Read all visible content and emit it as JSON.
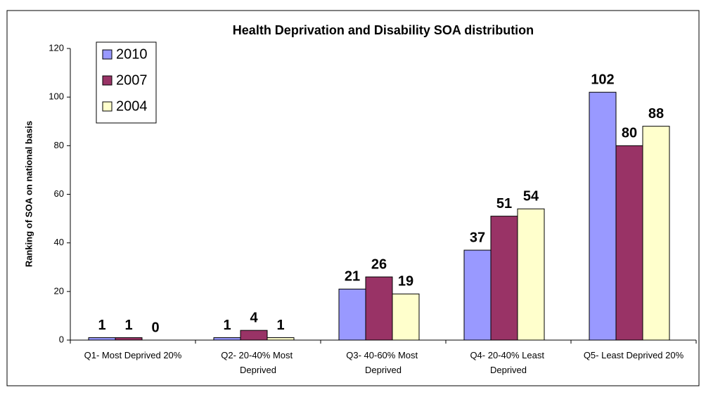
{
  "chart_data": {
    "type": "bar",
    "title": "Health Deprivation and Disability SOA distribution",
    "y_label": "Ranking of SOA on national basis",
    "categories": [
      "Q1- Most Deprived 20%",
      "Q2- 20-40% Most Deprived",
      "Q3- 40-60% Most Deprived",
      "Q4- 20-40% Least Deprived",
      "Q5- Least Deprived 20%"
    ],
    "series": [
      {
        "name": "2010",
        "color": "#9999ff",
        "values": [
          1,
          1,
          21,
          37,
          102
        ]
      },
      {
        "name": "2007",
        "color": "#993366",
        "values": [
          1,
          4,
          26,
          51,
          80
        ]
      },
      {
        "name": "2004",
        "color": "#ffffcc",
        "values": [
          0,
          1,
          19,
          54,
          88
        ]
      }
    ],
    "ylim": [
      0,
      120
    ],
    "yticks": [
      0,
      20,
      40,
      60,
      80,
      100,
      120
    ],
    "grid": false,
    "legend": "top-left"
  }
}
